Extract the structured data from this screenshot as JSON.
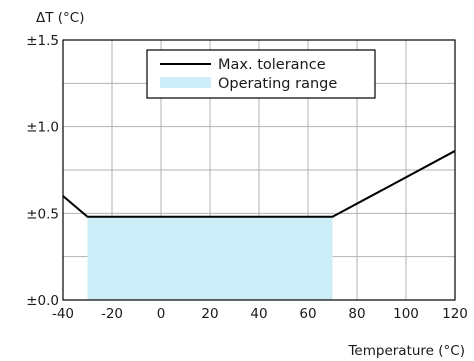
{
  "chart_data": {
    "type": "line",
    "title": "",
    "xlabel": "Temperature (°C)",
    "ylabel": "ΔT (°C)",
    "xlim": [
      -40,
      120
    ],
    "ylim": [
      0,
      1.5
    ],
    "x_ticks": [
      -40,
      -20,
      0,
      20,
      40,
      60,
      80,
      100,
      120
    ],
    "x_tick_labels": [
      "-40",
      "-20",
      "0",
      "20",
      "40",
      "60",
      "80",
      "100",
      "120"
    ],
    "y_ticks": [
      0,
      0.5,
      1.0,
      1.5
    ],
    "y_tick_labels": [
      "±0.0",
      "±0.5",
      "±1.0",
      "±1.5"
    ],
    "grid": true,
    "legend_position": "top-center",
    "series": [
      {
        "name": "Max. tolerance",
        "type": "line",
        "color": "#000000",
        "x": [
          -40,
          -30,
          70,
          120
        ],
        "y": [
          0.6,
          0.48,
          0.48,
          0.86
        ]
      },
      {
        "name": "Operating range",
        "type": "area",
        "color": "#cdeef8",
        "x": [
          -30,
          70
        ],
        "y": [
          0.48,
          0.48
        ]
      }
    ]
  }
}
